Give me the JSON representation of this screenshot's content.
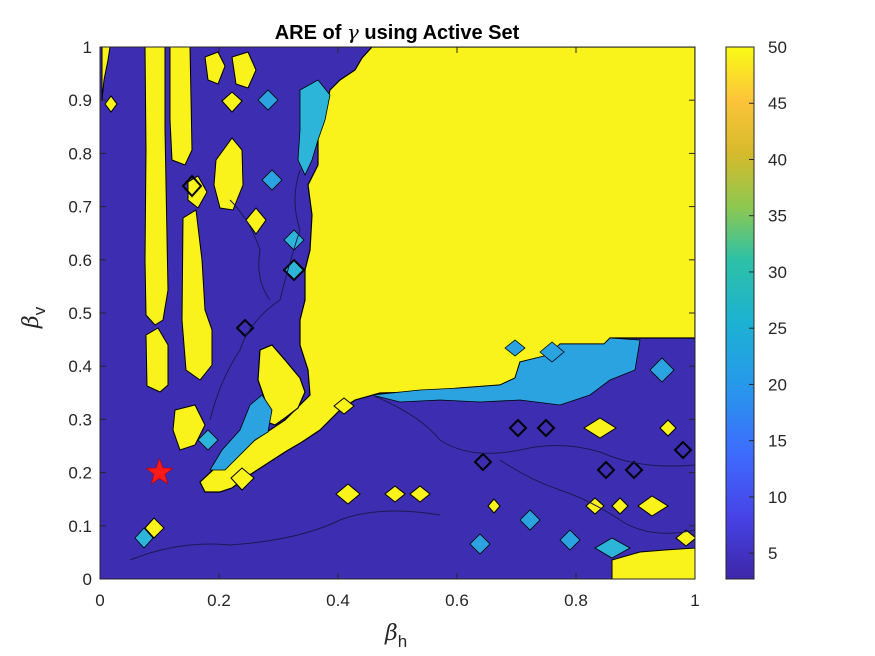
{
  "chart_data": {
    "type": "heatmap",
    "subtype": "filled-contour",
    "title": "ARE of γ using Active Set",
    "title_parts": {
      "prefix": "ARE of ",
      "symbol": "γ",
      "suffix": " using Active Set"
    },
    "xlabel": {
      "symbol": "β",
      "subscript": "h"
    },
    "ylabel": {
      "symbol": "β",
      "subscript": "v"
    },
    "xlim": [
      0,
      1
    ],
    "ylim": [
      0,
      1
    ],
    "xticks": [
      "0",
      "0.2",
      "0.4",
      "0.6",
      "0.8",
      "1"
    ],
    "xtick_values": [
      0,
      0.2,
      0.4,
      0.6,
      0.8,
      1
    ],
    "yticks": [
      "0",
      "0.1",
      "0.2",
      "0.3",
      "0.4",
      "0.5",
      "0.6",
      "0.7",
      "0.8",
      "0.9",
      "1"
    ],
    "ytick_values": [
      0,
      0.1,
      0.2,
      0.3,
      0.4,
      0.5,
      0.6,
      0.7,
      0.8,
      0.9,
      1
    ],
    "colorbar": {
      "ticks": [
        "5",
        "10",
        "15",
        "20",
        "25",
        "30",
        "35",
        "40",
        "45",
        "50"
      ],
      "tick_values": [
        5,
        10,
        15,
        20,
        25,
        30,
        35,
        40,
        45,
        50
      ],
      "range": [
        2.7,
        50
      ],
      "colormap": "parula"
    },
    "colors": {
      "low": "#3d2eb1",
      "high": "#f9f21b",
      "mid_cyan": "#2db5d9",
      "marker": "#ff1a1a"
    },
    "regions": [
      {
        "name": "upper-right plateau",
        "value": 50,
        "x": [
          0.36,
          1.0
        ],
        "y": [
          0.35,
          1.0
        ]
      },
      {
        "name": "lower-right region",
        "value": 3,
        "x": [
          0.36,
          1.0
        ],
        "y": [
          0.0,
          0.35
        ]
      },
      {
        "name": "left region",
        "value": 3,
        "x": [
          0.0,
          0.36
        ],
        "y": [
          0.0,
          1.0
        ]
      }
    ],
    "marker": {
      "shape": "star",
      "x": 0.1,
      "y": 0.2,
      "color": "#ff1a1a"
    }
  }
}
